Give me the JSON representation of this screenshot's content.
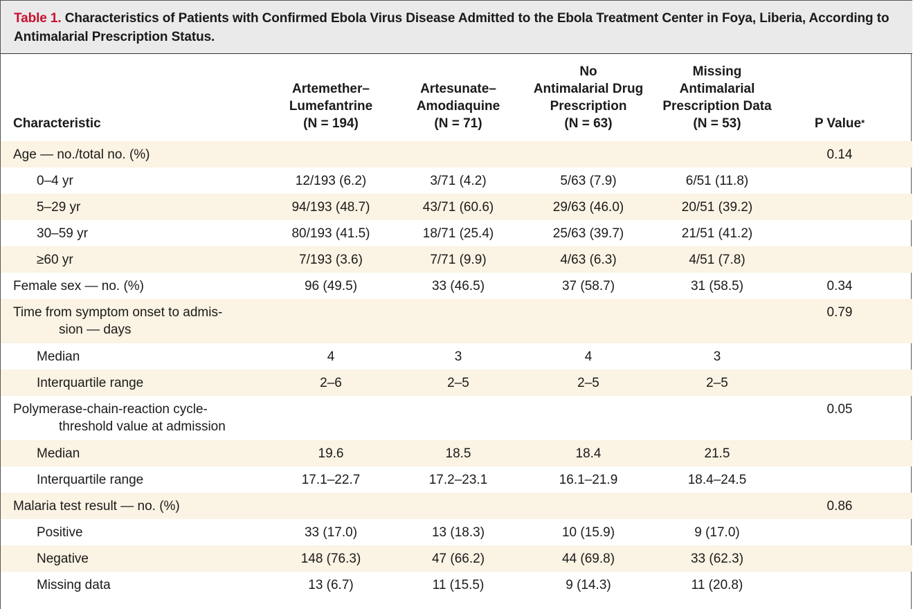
{
  "caption": {
    "label": "Table 1.",
    "text": "Characteristics of Patients with Confirmed Ebola Virus Disease Admitted to the Ebola Treatment Center in Foya, Liberia, According to Antimalarial Prescription Status."
  },
  "header": {
    "characteristic": "Characteristic",
    "col1": [
      "Artemether–",
      "Lumefantrine",
      "(N = 194)"
    ],
    "col2": [
      "Artesunate–",
      "Amodiaquine",
      "(N = 71)"
    ],
    "col3": [
      "No",
      "Antimalarial Drug",
      "Prescription",
      "(N = 63)"
    ],
    "col4": [
      "Missing",
      "Antimalarial",
      "Prescription Data",
      "(N = 53)"
    ],
    "pvalue": "P Value",
    "pvalue_mark": "*"
  },
  "rows": [
    {
      "label": "Age — no./total no. (%)",
      "indent": false,
      "shaded": true,
      "values": [
        "",
        "",
        "",
        ""
      ],
      "p": "0.14"
    },
    {
      "label": "0–4 yr",
      "indent": true,
      "shaded": false,
      "values": [
        "12/193 (6.2)",
        "3/71 (4.2)",
        "5/63 (7.9)",
        "6/51 (11.8)"
      ],
      "p": ""
    },
    {
      "label": "5–29 yr",
      "indent": true,
      "shaded": true,
      "values": [
        "94/193 (48.7)",
        "43/71 (60.6)",
        "29/63 (46.0)",
        "20/51 (39.2)"
      ],
      "p": ""
    },
    {
      "label": "30–59 yr",
      "indent": true,
      "shaded": false,
      "values": [
        "80/193 (41.5)",
        "18/71 (25.4)",
        "25/63 (39.7)",
        "21/51 (41.2)"
      ],
      "p": ""
    },
    {
      "label": "≥60 yr",
      "indent": true,
      "shaded": true,
      "values": [
        "7/193 (3.6)",
        "7/71 (9.9)",
        "4/63 (6.3)",
        "4/51 (7.8)"
      ],
      "p": ""
    },
    {
      "label": "Female sex — no. (%)",
      "indent": false,
      "shaded": false,
      "values": [
        "96 (49.5)",
        "33 (46.5)",
        "37 (58.7)",
        "31 (58.5)"
      ],
      "p": "0.34"
    },
    {
      "label": "Time from symptom onset to admis-",
      "label2": "sion — days",
      "indent": false,
      "shaded": true,
      "values": [
        "",
        "",
        "",
        ""
      ],
      "p": "0.79"
    },
    {
      "label": "Median",
      "indent": true,
      "shaded": false,
      "values": [
        "4",
        "3",
        "4",
        "3"
      ],
      "p": ""
    },
    {
      "label": "Interquartile range",
      "indent": true,
      "shaded": true,
      "values": [
        "2–6",
        "2–5",
        "2–5",
        "2–5"
      ],
      "p": ""
    },
    {
      "label": "Polymerase-chain-reaction cycle-",
      "label2": "threshold value at admission",
      "indent": false,
      "shaded": false,
      "values": [
        "",
        "",
        "",
        ""
      ],
      "p": "0.05"
    },
    {
      "label": "Median",
      "indent": true,
      "shaded": true,
      "values": [
        "19.6",
        "18.5",
        "18.4",
        "21.5"
      ],
      "p": ""
    },
    {
      "label": "Interquartile range",
      "indent": true,
      "shaded": false,
      "values": [
        "17.1–22.7",
        "17.2–23.1",
        "16.1–21.9",
        "18.4–24.5"
      ],
      "p": ""
    },
    {
      "label": "Malaria test result — no. (%)",
      "indent": false,
      "shaded": true,
      "values": [
        "",
        "",
        "",
        ""
      ],
      "p": "0.86"
    },
    {
      "label": "Positive",
      "indent": true,
      "shaded": false,
      "values": [
        "33 (17.0)",
        "13 (18.3)",
        "10 (15.9)",
        "9 (17.0)"
      ],
      "p": ""
    },
    {
      "label": "Negative",
      "indent": true,
      "shaded": true,
      "values": [
        "148 (76.3)",
        "47 (66.2)",
        "44 (69.8)",
        "33 (62.3)"
      ],
      "p": ""
    },
    {
      "label": "Missing data",
      "indent": true,
      "shaded": false,
      "values": [
        "13 (6.7)",
        "11 (15.5)",
        "9 (14.3)",
        "11 (20.8)"
      ],
      "p": ""
    }
  ]
}
